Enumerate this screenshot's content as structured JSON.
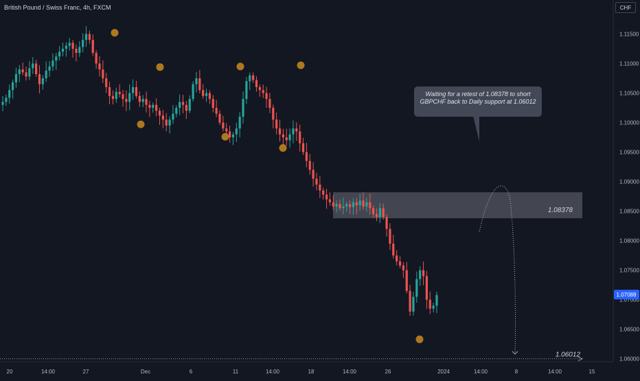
{
  "header": {
    "title": "British Pound / Swiss Franc, 4h, FXCM",
    "currency_button": "CHF"
  },
  "colors": {
    "background": "#131722",
    "up_candle": "#26a69a",
    "down_candle": "#ef5350",
    "swing_marker": "#c98a1e",
    "zone": "#6b6e78",
    "last_price_badge": "#2962ff",
    "text": "#d1d4dc"
  },
  "annotations": {
    "note": "Waiting for a retest of 1.08378 to short GBPCHF back to Daily support at 1.06012",
    "resistance_label": "1.08378",
    "support_label": "1.06012",
    "last_price_label": "1.07088"
  },
  "chart_data": {
    "type": "candlestick",
    "title": "British Pound / Swiss Franc, 4h, FXCM",
    "ylim": [
      1.0595,
      1.1175
    ],
    "y_ticks": [
      "1.11500",
      "1.11000",
      "1.10500",
      "1.10000",
      "1.09500",
      "1.09000",
      "1.08500",
      "1.08000",
      "1.07500",
      "1.07000",
      "1.06500",
      "1.06000"
    ],
    "x_ticks": [
      "20",
      "14:00",
      "27",
      "Dec",
      "6",
      "11",
      "14:00",
      "18",
      "14:00",
      "26",
      "2024",
      "14:00",
      "8",
      "14:00",
      "15"
    ],
    "last_price": 1.07088,
    "swing_high_markers": [
      1.1152,
      1.1094,
      1.1095,
      1.1097
    ],
    "swing_low_markers": [
      1.0997,
      1.0976,
      1.0957,
      1.0633
    ],
    "zones": [
      {
        "from": 1.0838,
        "to": 1.0882
      }
    ],
    "levels": [
      1.08378,
      1.06012
    ],
    "series_path": [
      1.1035,
      1.1042,
      1.1055,
      1.1068,
      1.1082,
      1.109,
      1.1085,
      1.1078,
      1.1092,
      1.11,
      1.1082,
      1.1065,
      1.1075,
      1.1088,
      1.1095,
      1.1105,
      1.1112,
      1.112,
      1.1125,
      1.113,
      1.1135,
      1.1125,
      1.1118,
      1.1128,
      1.114,
      1.115,
      1.114,
      1.1118,
      1.11,
      1.109,
      1.1075,
      1.106,
      1.1045,
      1.104,
      1.1052,
      1.1048,
      1.104,
      1.1035,
      1.105,
      1.106,
      1.1045,
      1.1035,
      1.104,
      1.103,
      1.1025,
      1.103,
      1.102,
      1.1012,
      1.1005,
      1.0995,
      1.1005,
      1.1015,
      1.1025,
      1.1035,
      1.103,
      1.102,
      1.104,
      1.1065,
      1.1075,
      1.1055,
      1.1045,
      1.105,
      1.104,
      1.1025,
      1.1015,
      1.1,
      1.099,
      1.0985,
      1.0975,
      1.098,
      1.099,
      1.101,
      1.104,
      1.107,
      1.108,
      1.1072,
      1.106,
      1.1055,
      1.105,
      1.104,
      1.1025,
      1.1005,
      1.099,
      1.098,
      1.0975,
      1.097,
      1.098,
      1.099,
      1.0985,
      1.0965,
      1.095,
      1.0935,
      1.092,
      1.0905,
      1.0895,
      1.0885,
      1.0878,
      1.087,
      1.0865,
      1.0858,
      1.0862,
      1.0855,
      1.0858,
      1.0862,
      1.0857,
      1.0865,
      1.086,
      1.0868,
      1.0858,
      1.0865,
      1.0855,
      1.0845,
      1.084,
      1.0855,
      1.084,
      1.082,
      1.0795,
      1.0775,
      1.0765,
      1.0758,
      1.075,
      1.0715,
      1.068,
      1.0705,
      1.0735,
      1.075,
      1.074,
      1.07,
      1.0685,
      1.069,
      1.0708
    ],
    "projection": {
      "from": 1.0815,
      "peak": 1.087,
      "to": 1.0608
    }
  }
}
